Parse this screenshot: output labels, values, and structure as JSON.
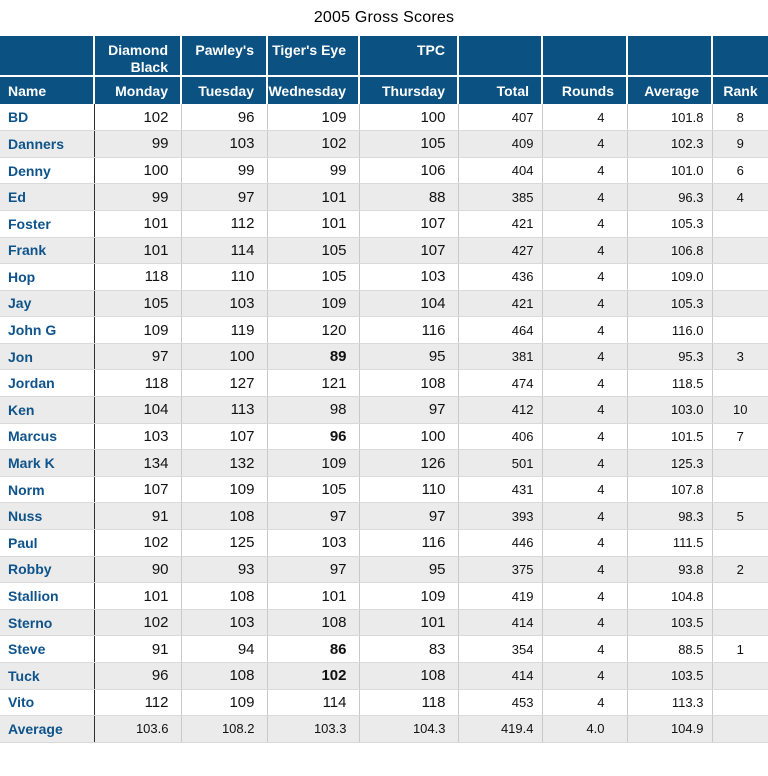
{
  "title": "2005 Gross Scores",
  "colors": {
    "header_bg": "#0b5181",
    "name_text": "#0e538a",
    "stripe_row": "#ebebeb",
    "number_text": "#111111"
  },
  "table": {
    "venue_header": [
      "",
      "Diamond Black",
      "Pawley's",
      "Tiger's Eye",
      "TPC",
      "",
      "",
      "",
      ""
    ],
    "day_header": [
      "Name",
      "Monday",
      "Tuesday",
      "Wednesday",
      "Thursday",
      "Total",
      "Rounds",
      "Average",
      "Rank"
    ],
    "players": [
      {
        "name": "BD",
        "monday": "102",
        "tuesday": "96",
        "wednesday": "109",
        "thursday": "100",
        "total": "407",
        "rounds": "4",
        "average": "101.8",
        "rank": "8",
        "bold": []
      },
      {
        "name": "Danners",
        "monday": "99",
        "tuesday": "103",
        "wednesday": "102",
        "thursday": "105",
        "total": "409",
        "rounds": "4",
        "average": "102.3",
        "rank": "9",
        "bold": []
      },
      {
        "name": "Denny",
        "monday": "100",
        "tuesday": "99",
        "wednesday": "99",
        "thursday": "106",
        "total": "404",
        "rounds": "4",
        "average": "101.0",
        "rank": "6",
        "bold": []
      },
      {
        "name": "Ed",
        "monday": "99",
        "tuesday": "97",
        "wednesday": "101",
        "thursday": "88",
        "total": "385",
        "rounds": "4",
        "average": "96.3",
        "rank": "4",
        "bold": []
      },
      {
        "name": "Foster",
        "monday": "101",
        "tuesday": "112",
        "wednesday": "101",
        "thursday": "107",
        "total": "421",
        "rounds": "4",
        "average": "105.3",
        "rank": "",
        "bold": []
      },
      {
        "name": "Frank",
        "monday": "101",
        "tuesday": "114",
        "wednesday": "105",
        "thursday": "107",
        "total": "427",
        "rounds": "4",
        "average": "106.8",
        "rank": "",
        "bold": []
      },
      {
        "name": "Hop",
        "monday": "118",
        "tuesday": "110",
        "wednesday": "105",
        "thursday": "103",
        "total": "436",
        "rounds": "4",
        "average": "109.0",
        "rank": "",
        "bold": []
      },
      {
        "name": "Jay",
        "monday": "105",
        "tuesday": "103",
        "wednesday": "109",
        "thursday": "104",
        "total": "421",
        "rounds": "4",
        "average": "105.3",
        "rank": "",
        "bold": []
      },
      {
        "name": "John G",
        "monday": "109",
        "tuesday": "119",
        "wednesday": "120",
        "thursday": "116",
        "total": "464",
        "rounds": "4",
        "average": "116.0",
        "rank": "",
        "bold": []
      },
      {
        "name": "Jon",
        "monday": "97",
        "tuesday": "100",
        "wednesday": "89",
        "thursday": "95",
        "total": "381",
        "rounds": "4",
        "average": "95.3",
        "rank": "3",
        "bold": [
          "wednesday"
        ]
      },
      {
        "name": "Jordan",
        "monday": "118",
        "tuesday": "127",
        "wednesday": "121",
        "thursday": "108",
        "total": "474",
        "rounds": "4",
        "average": "118.5",
        "rank": "",
        "bold": []
      },
      {
        "name": "Ken",
        "monday": "104",
        "tuesday": "113",
        "wednesday": "98",
        "thursday": "97",
        "total": "412",
        "rounds": "4",
        "average": "103.0",
        "rank": "10",
        "bold": []
      },
      {
        "name": "Marcus",
        "monday": "103",
        "tuesday": "107",
        "wednesday": "96",
        "thursday": "100",
        "total": "406",
        "rounds": "4",
        "average": "101.5",
        "rank": "7",
        "bold": [
          "wednesday"
        ]
      },
      {
        "name": "Mark K",
        "monday": "134",
        "tuesday": "132",
        "wednesday": "109",
        "thursday": "126",
        "total": "501",
        "rounds": "4",
        "average": "125.3",
        "rank": "",
        "bold": []
      },
      {
        "name": "Norm",
        "monday": "107",
        "tuesday": "109",
        "wednesday": "105",
        "thursday": "110",
        "total": "431",
        "rounds": "4",
        "average": "107.8",
        "rank": "",
        "bold": []
      },
      {
        "name": "Nuss",
        "monday": "91",
        "tuesday": "108",
        "wednesday": "97",
        "thursday": "97",
        "total": "393",
        "rounds": "4",
        "average": "98.3",
        "rank": "5",
        "bold": []
      },
      {
        "name": "Paul",
        "monday": "102",
        "tuesday": "125",
        "wednesday": "103",
        "thursday": "116",
        "total": "446",
        "rounds": "4",
        "average": "111.5",
        "rank": "",
        "bold": []
      },
      {
        "name": "Robby",
        "monday": "90",
        "tuesday": "93",
        "wednesday": "97",
        "thursday": "95",
        "total": "375",
        "rounds": "4",
        "average": "93.8",
        "rank": "2",
        "bold": []
      },
      {
        "name": "Stallion",
        "monday": "101",
        "tuesday": "108",
        "wednesday": "101",
        "thursday": "109",
        "total": "419",
        "rounds": "4",
        "average": "104.8",
        "rank": "",
        "bold": []
      },
      {
        "name": "Sterno",
        "monday": "102",
        "tuesday": "103",
        "wednesday": "108",
        "thursday": "101",
        "total": "414",
        "rounds": "4",
        "average": "103.5",
        "rank": "",
        "bold": []
      },
      {
        "name": "Steve",
        "monday": "91",
        "tuesday": "94",
        "wednesday": "86",
        "thursday": "83",
        "total": "354",
        "rounds": "4",
        "average": "88.5",
        "rank": "1",
        "bold": [
          "wednesday"
        ]
      },
      {
        "name": "Tuck",
        "monday": "96",
        "tuesday": "108",
        "wednesday": "102",
        "thursday": "108",
        "total": "414",
        "rounds": "4",
        "average": "103.5",
        "rank": "",
        "bold": [
          "wednesday"
        ]
      },
      {
        "name": "Vito",
        "monday": "112",
        "tuesday": "109",
        "wednesday": "114",
        "thursday": "118",
        "total": "453",
        "rounds": "4",
        "average": "113.3",
        "rank": "",
        "bold": []
      }
    ],
    "summary": {
      "name": "Average",
      "monday": "103.6",
      "tuesday": "108.2",
      "wednesday": "103.3",
      "thursday": "104.3",
      "total": "419.4",
      "rounds": "4.0",
      "average": "104.9",
      "rank": ""
    }
  }
}
